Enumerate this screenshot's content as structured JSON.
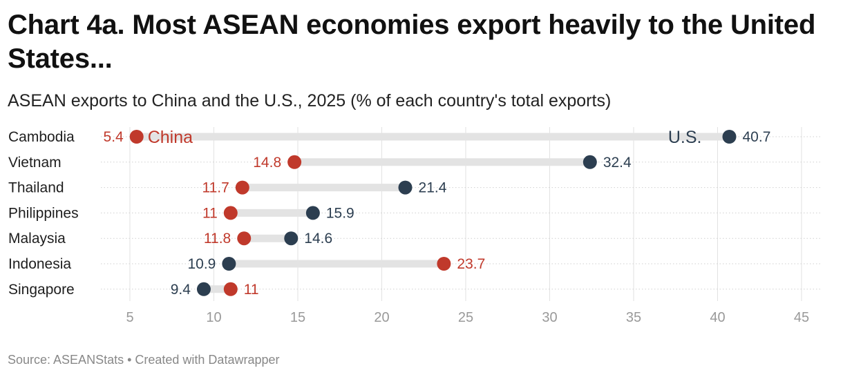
{
  "title": "Chart 4a. Most ASEAN economies export heavily to the United States...",
  "subtitle": "ASEAN exports to China and the U.S., 2025 (% of each country's total exports)",
  "source": "Source: ASEANStats • Created with Datawrapper",
  "chart_data": {
    "type": "dot-range",
    "categories": [
      "Cambodia",
      "Vietnam",
      "Thailand",
      "Philippines",
      "Malaysia",
      "Indonesia",
      "Singapore"
    ],
    "series": [
      {
        "name": "China",
        "values": [
          5.4,
          14.8,
          11.7,
          11,
          11.8,
          23.7,
          11
        ],
        "color": "#c0392b"
      },
      {
        "name": "U.S.",
        "values": [
          40.7,
          32.4,
          21.4,
          15.9,
          14.6,
          10.9,
          9.4
        ],
        "color": "#2c3e50"
      }
    ],
    "x_ticks": [
      5,
      10,
      15,
      20,
      25,
      30,
      35,
      40,
      45
    ],
    "xlim": [
      5,
      45
    ],
    "grid": true,
    "range_bar_color": "#e3e3e3",
    "tick_label_color": "#999999"
  }
}
